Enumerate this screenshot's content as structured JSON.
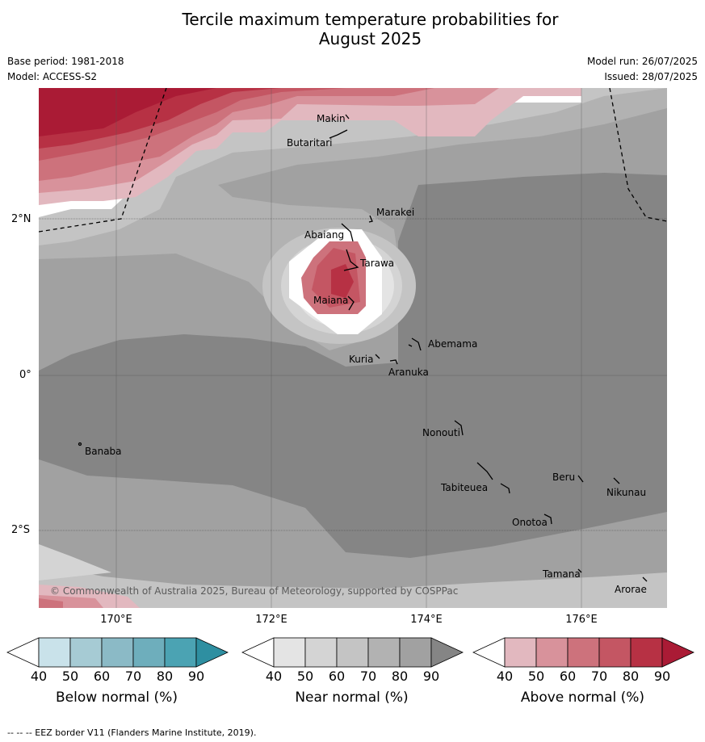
{
  "title_line1": "Tercile maximum temperature probabilities for",
  "title_line2": "August 2025",
  "meta": {
    "base_period": "Base period: 1981-2018",
    "model": "Model: ACCESS-S2",
    "model_run": "Model run: 26/07/2025",
    "issued": "Issued: 28/07/2025"
  },
  "axes": {
    "lat_labels": [
      "2°N",
      "0°",
      "2°S"
    ],
    "lon_labels": [
      "170°E",
      "172°E",
      "174°E",
      "176°E"
    ]
  },
  "islands": [
    "Makin",
    "Butaritari",
    "Marakei",
    "Abaiang",
    "Tarawa",
    "Maiana",
    "Abemama",
    "Kuria",
    "Aranuka",
    "Nonouti",
    "Banaba",
    "Beru",
    "Tabiteuea",
    "Nikunau",
    "Onotoa",
    "Tamana",
    "Arorae"
  ],
  "copyright": "© Commonwealth of Australia 2025, Bureau of Meteorology, supported by COSPPac",
  "colorbars": [
    {
      "title": "Below normal (%)",
      "ticks": [
        "40",
        "50",
        "60",
        "70",
        "80",
        "90"
      ],
      "colors": [
        "#ffffff",
        "#c9e2ea",
        "#a6cbd4",
        "#8bbac6",
        "#6eaebc",
        "#4ba3b3",
        "#2e8fa1"
      ]
    },
    {
      "title": "Near normal (%)",
      "ticks": [
        "40",
        "50",
        "60",
        "70",
        "80",
        "90"
      ],
      "colors": [
        "#ffffff",
        "#e4e4e4",
        "#d4d4d4",
        "#c4c4c4",
        "#b2b2b2",
        "#a1a1a1",
        "#858585"
      ]
    },
    {
      "title": "Above normal (%)",
      "ticks": [
        "40",
        "50",
        "60",
        "70",
        "80",
        "90"
      ],
      "colors": [
        "#ffffff",
        "#e2b8bf",
        "#d8929b",
        "#cd727c",
        "#c45663",
        "#b73144",
        "#aa1b35"
      ]
    }
  ],
  "footer": "--  --  -- EEZ border V11 (Flanders Marine Institute, 2019)."
}
